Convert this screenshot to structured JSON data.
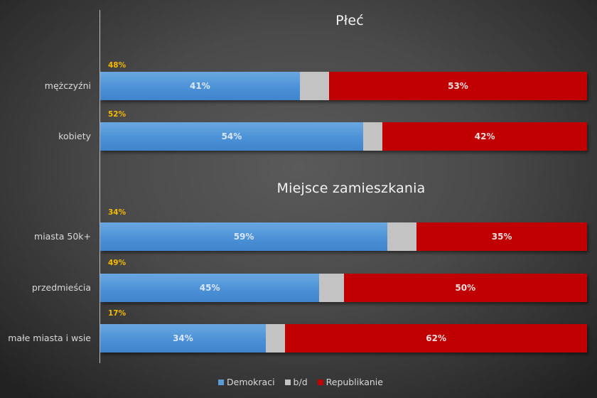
{
  "colors": {
    "demokraci": "#4a90d6",
    "bd": "#c3c3c3",
    "republikanie": "#c00000",
    "share_label": "#f5b800"
  },
  "sections": [
    {
      "title": "Płeć"
    },
    {
      "title": "Miejsce zamieszkania"
    }
  ],
  "rows": [
    {
      "label": "mężczyźni",
      "share": "48%",
      "dem": 41,
      "bd": 6,
      "rep": 53,
      "dem_label": "41%",
      "rep_label": "53%"
    },
    {
      "label": "kobiety",
      "share": "52%",
      "dem": 54,
      "bd": 4,
      "rep": 42,
      "dem_label": "54%",
      "rep_label": "42%"
    },
    {
      "label": "miasta 50k+",
      "share": "34%",
      "dem": 59,
      "bd": 6,
      "rep": 35,
      "dem_label": "59%",
      "rep_label": "35%"
    },
    {
      "label": "przedmieścia",
      "share": "49%",
      "dem": 45,
      "bd": 5,
      "rep": 50,
      "dem_label": "45%",
      "rep_label": "50%"
    },
    {
      "label": "małe miasta i wsie",
      "share": "17%",
      "dem": 34,
      "bd": 4,
      "rep": 62,
      "dem_label": "34%",
      "rep_label": "62%"
    }
  ],
  "legend": [
    {
      "label": "Demokraci"
    },
    {
      "label": "b/d"
    },
    {
      "label": "Republikanie"
    }
  ],
  "chart_data": {
    "type": "bar",
    "orientation": "horizontal",
    "stacked": "100%",
    "title": "",
    "subtitles": [
      "Płeć",
      "Miejsce zamieszkania"
    ],
    "categories": [
      "mężczyźni",
      "kobiety",
      "miasta 50k+",
      "przedmieścia",
      "małe miasta i wsie"
    ],
    "groups": [
      {
        "name": "Płeć",
        "categories": [
          "mężczyźni",
          "kobiety"
        ]
      },
      {
        "name": "Miejsce zamieszkania",
        "categories": [
          "miasta 50k+",
          "przedmieścia",
          "małe miasta i wsie"
        ]
      }
    ],
    "series": [
      {
        "name": "Demokraci",
        "color": "#4a90d6",
        "values": [
          41,
          54,
          59,
          45,
          34
        ]
      },
      {
        "name": "b/d",
        "color": "#c3c3c3",
        "values": [
          6,
          4,
          6,
          5,
          4
        ]
      },
      {
        "name": "Republikanie",
        "color": "#c00000",
        "values": [
          53,
          42,
          35,
          50,
          62
        ]
      }
    ],
    "annotations": {
      "share_of_electorate": {
        "mężczyźni": "48%",
        "kobiety": "52%",
        "miasta 50k+": "34%",
        "przedmieścia": "49%",
        "małe miasta i wsie": "17%"
      }
    },
    "xlabel": "",
    "ylabel": "",
    "xlim": [
      0,
      100
    ],
    "grid": false,
    "legend_position": "bottom"
  }
}
